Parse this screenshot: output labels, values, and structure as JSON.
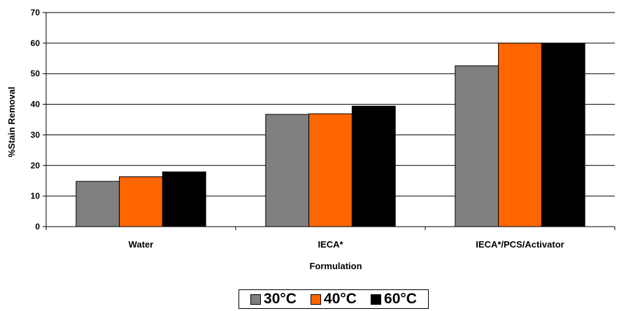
{
  "chart_data": {
    "type": "bar",
    "categories": [
      "Water",
      "IECA*",
      "IECA*/PCS/Activator"
    ],
    "series": [
      {
        "name": "30°C",
        "values": [
          14.8,
          36.7,
          52.6
        ],
        "color": "#808080"
      },
      {
        "name": "40°C",
        "values": [
          16.3,
          36.9,
          60.0
        ],
        "color": "#ff6600"
      },
      {
        "name": "60°C",
        "values": [
          17.9,
          39.4,
          60.0
        ],
        "color": "#000000"
      }
    ],
    "xlabel": "Formulation",
    "ylabel": "%Stain Removal",
    "ylim": [
      0,
      70
    ],
    "yticks": [
      "0",
      "10",
      "20",
      "30",
      "40",
      "50",
      "60",
      "70"
    ],
    "grid": true,
    "legend": "bottom-center"
  }
}
